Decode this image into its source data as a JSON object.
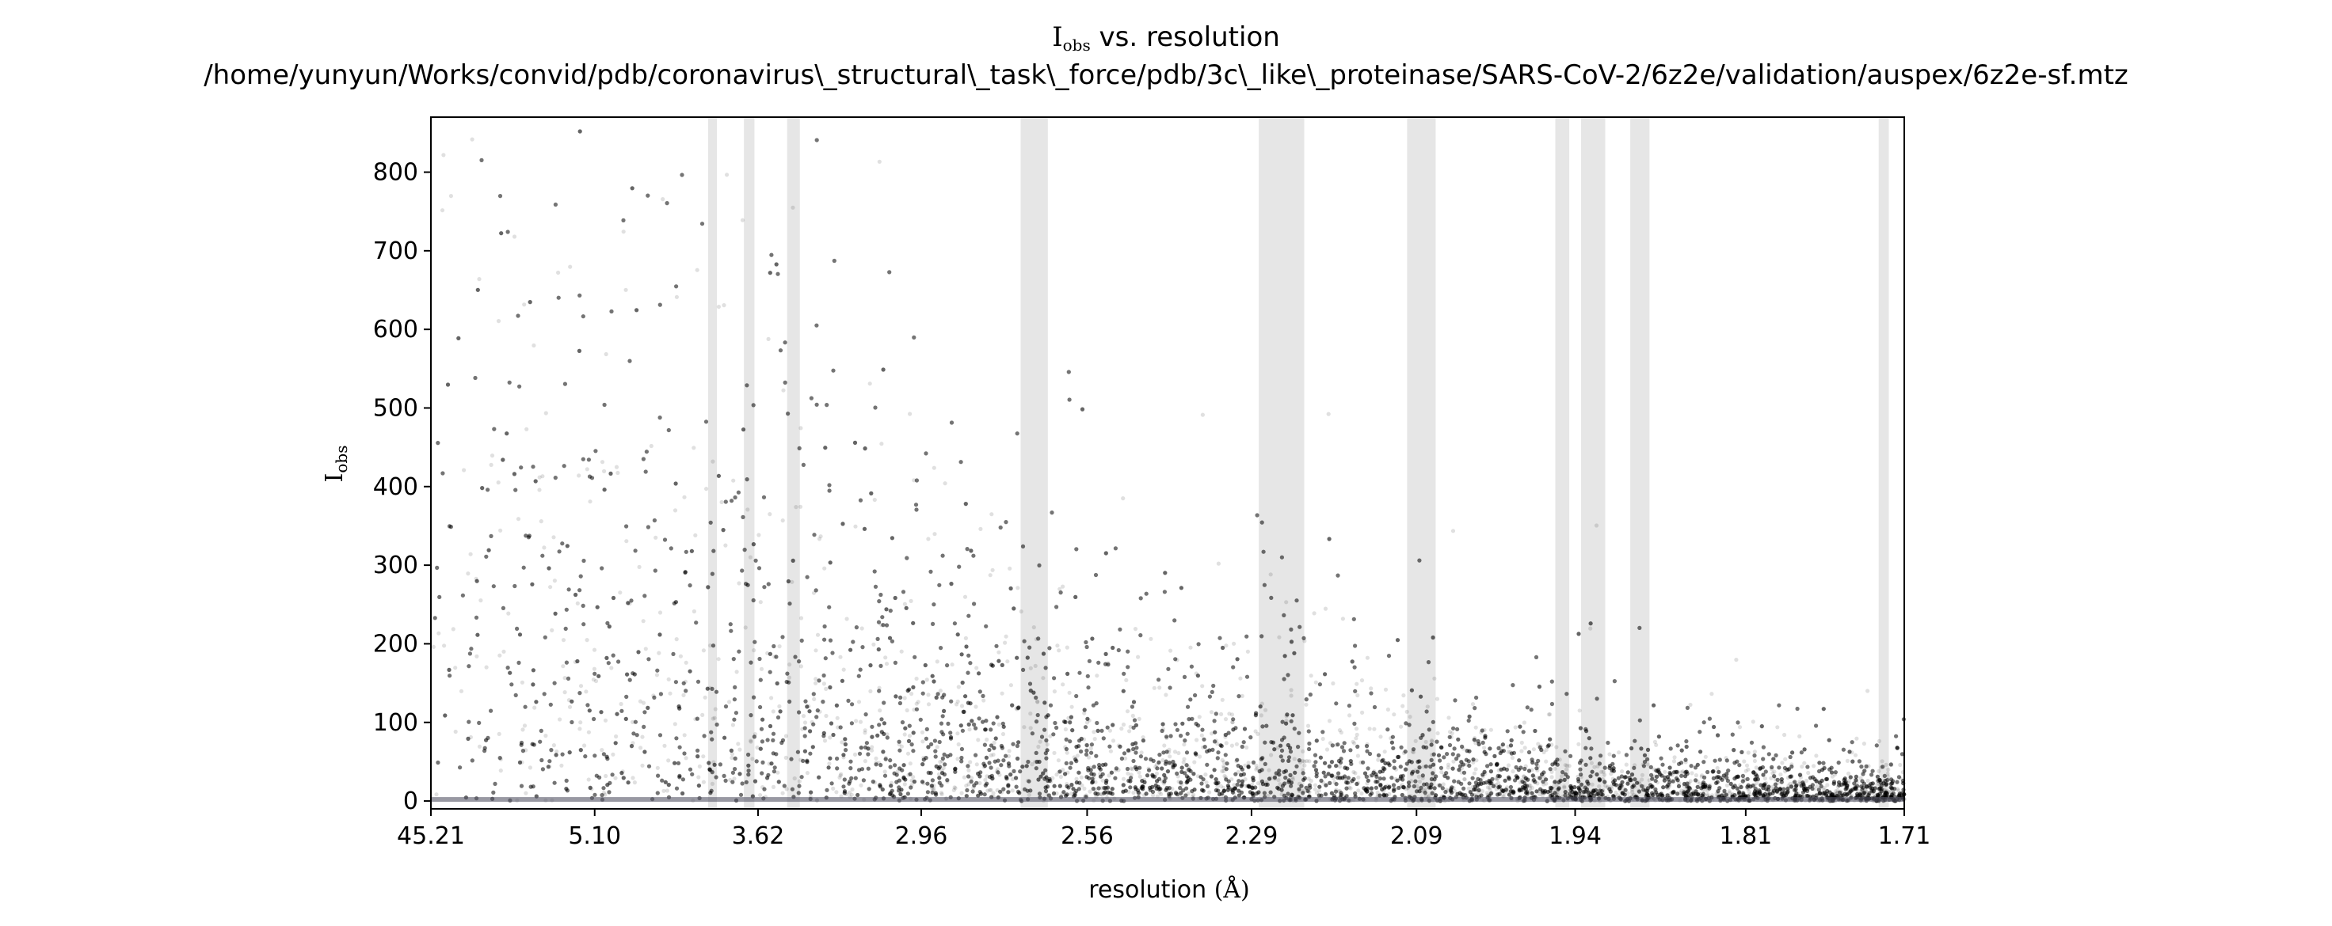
{
  "chart_data": {
    "type": "scatter",
    "title": {
      "line1": {
        "symbol": "I",
        "subscript": "obs",
        "rest": " vs. resolution"
      },
      "line2": "/home/yunyun/Works/convid/pdb/coronavirus\\_structural\\_task\\_force/pdb/3c\\_like\\_proteinase/SARS-CoV-2/6z2e/validation/auspex/6z2e-sf.mtz"
    },
    "xlabel": {
      "text": "resolution ",
      "unit": "(Å)"
    },
    "ylabel": {
      "symbol": "I",
      "subscript": "obs"
    },
    "x_scale": "1/d^2",
    "x_ticks": [
      "45.21",
      "5.10",
      "3.62",
      "2.96",
      "2.56",
      "2.29",
      "2.09",
      "1.94",
      "1.81",
      "1.71"
    ],
    "xlim": [
      45.21,
      1.71
    ],
    "y_ticks": [
      "0",
      "100",
      "200",
      "300",
      "400",
      "500",
      "600",
      "700",
      "800"
    ],
    "ylim": [
      -10,
      870
    ],
    "ice_ring_bands": [
      [
        3.93,
        3.87
      ],
      [
        3.7,
        3.64
      ],
      [
        3.47,
        3.41
      ],
      [
        2.7,
        2.64
      ],
      [
        2.28,
        2.22
      ],
      [
        2.1,
        2.07
      ],
      [
        1.957,
        1.945
      ],
      [
        1.935,
        1.915
      ],
      [
        1.895,
        1.88
      ],
      [
        1.725,
        1.719
      ]
    ],
    "point_color": "#000000",
    "band_color": "#e6e6e6",
    "point_count_shown": 18000
  }
}
